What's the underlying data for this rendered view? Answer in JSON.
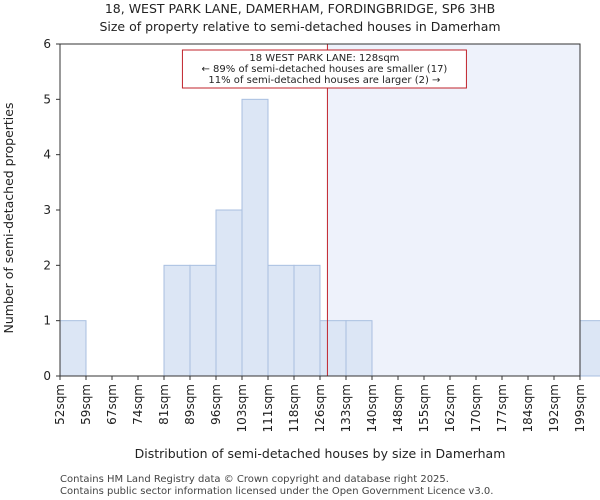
{
  "chart_data": {
    "type": "bar",
    "title": "18, WEST PARK LANE, DAMERHAM, FORDINGBRIDGE, SP6 3HB",
    "subtitle": "Size of property relative to semi-detached houses in Damerham",
    "xlabel": "Distribution of semi-detached houses by size in Damerham",
    "ylabel": "Number of semi-detached properties",
    "ylim": [
      0,
      6
    ],
    "yticks": [
      "0",
      "1",
      "2",
      "3",
      "4",
      "5",
      "6"
    ],
    "categories": [
      "52sqm",
      "59sqm",
      "67sqm",
      "74sqm",
      "81sqm",
      "89sqm",
      "96sqm",
      "103sqm",
      "111sqm",
      "118sqm",
      "126sqm",
      "133sqm",
      "140sqm",
      "148sqm",
      "155sqm",
      "162sqm",
      "170sqm",
      "177sqm",
      "184sqm",
      "192sqm",
      "199sqm"
    ],
    "values": [
      1,
      0,
      0,
      0,
      2,
      2,
      3,
      5,
      2,
      2,
      1,
      1,
      0,
      0,
      0,
      0,
      0,
      0,
      0,
      0,
      1
    ],
    "marker_value_sqm": 128,
    "annotation": {
      "line1": "18 WEST PARK LANE: 128sqm",
      "line2": "← 89% of semi-detached houses are smaller (17)",
      "line3": "11% of semi-detached houses are larger (2) →"
    },
    "colors": {
      "bar_fill": "#dce6f5",
      "bar_stroke": "#a9bfe0",
      "marker": "#c0232b",
      "shade": "#eef2fb",
      "annotation_border": "#c0232b"
    }
  },
  "footer": {
    "line1": "Contains HM Land Registry data © Crown copyright and database right 2025.",
    "line2": "Contains public sector information licensed under the Open Government Licence v3.0."
  }
}
